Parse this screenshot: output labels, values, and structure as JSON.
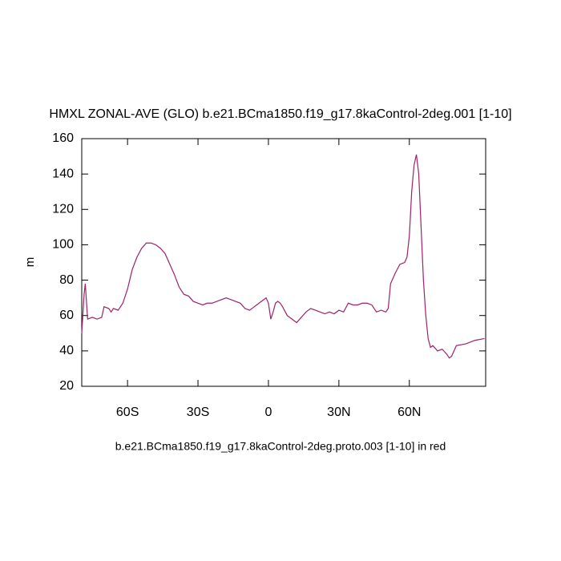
{
  "chart_data": {
    "type": "line",
    "title": "HMXL ZONAL-AVE (GLO) b.e21.BCma1850.f19_g17.8kaControl-2deg.001 [1-10]",
    "y_label": "m",
    "footer": "b.e21.BCma1850.f19_g17.8kaControl-2deg.proto.003 [1-10] in red",
    "x": [
      -79.5,
      -78.5,
      -78,
      -77,
      -75,
      -73,
      -71,
      -70,
      -68,
      -67,
      -66,
      -64,
      -62,
      -60,
      -58,
      -56,
      -54,
      -52,
      -50,
      -48,
      -46,
      -44,
      -42,
      -40,
      -38,
      -36,
      -34,
      -32,
      -30,
      -28,
      -26,
      -24,
      -22,
      -20,
      -18,
      -16,
      -14,
      -12,
      -10,
      -8,
      -6,
      -4,
      -2,
      -1,
      0,
      1,
      2,
      3,
      4,
      5,
      6,
      8,
      10,
      12,
      14,
      16,
      18,
      20,
      22,
      24,
      26,
      28,
      30,
      32,
      34,
      36,
      38,
      40,
      42,
      44,
      46,
      48,
      50,
      51,
      52,
      54,
      56,
      58,
      59,
      60,
      61,
      62,
      63,
      64,
      65,
      66,
      67,
      68,
      69,
      70,
      72,
      74,
      76,
      77,
      78,
      80,
      84,
      88,
      92
    ],
    "values": [
      50,
      72,
      78,
      58,
      59,
      58,
      59,
      65,
      64,
      62,
      64,
      63,
      67,
      75,
      86,
      93,
      98,
      101,
      101,
      100,
      98,
      95,
      89,
      83,
      76,
      72,
      71,
      68,
      67,
      66,
      67,
      67,
      68,
      69,
      70,
      69,
      68,
      67,
      64,
      63,
      65,
      67,
      69,
      70,
      67,
      58,
      62,
      67,
      68,
      67,
      65,
      60,
      58,
      56,
      59,
      62,
      64,
      63,
      62,
      61,
      62,
      61,
      63,
      62,
      67,
      66,
      66,
      67,
      67,
      66,
      62,
      63,
      62,
      64,
      78,
      84,
      89,
      90,
      93,
      105,
      130,
      145,
      151,
      140,
      110,
      80,
      60,
      47,
      42,
      43,
      40,
      41,
      38,
      36,
      37,
      43,
      44,
      46,
      47
    ],
    "color": "#a0206a",
    "xlim": [
      -79.5,
      92.5
    ],
    "xticks": [
      {
        "value": -60,
        "label": "60S"
      },
      {
        "value": -30,
        "label": "30S"
      },
      0,
      {
        "value": 30,
        "label": "30N"
      },
      {
        "value": 60,
        "label": "60N"
      }
    ],
    "ylim": [
      20,
      160
    ],
    "yticks": [
      20,
      40,
      60,
      80,
      100,
      120,
      140,
      160
    ]
  }
}
